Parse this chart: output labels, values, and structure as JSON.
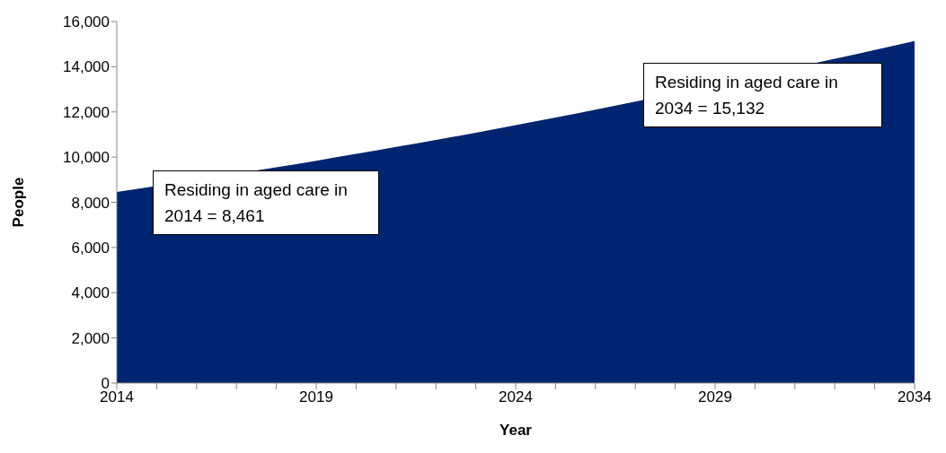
{
  "chart_data": {
    "type": "area",
    "xlabel": "Year",
    "ylabel": "People",
    "x": [
      2014,
      2018,
      2019,
      2020,
      2021,
      2022,
      2023,
      2024,
      2025,
      2026,
      2027,
      2032,
      2033,
      2034
    ],
    "series": [
      {
        "color": "#002570",
        "values": [
          8461,
          9550,
          9840,
          10140,
          10450,
          10760,
          11080,
          11410,
          11750,
          12100,
          12460,
          14350,
          14740,
          15132
        ]
      }
    ],
    "xlim": [
      2014,
      2034
    ],
    "xticks": [
      2014,
      {
        "value": 2015,
        "label": null
      },
      {
        "value": 2016,
        "label": null
      },
      {
        "value": 2017,
        "label": null
      },
      {
        "value": 2018,
        "label": null
      },
      2019,
      {
        "value": 2020,
        "label": null
      },
      {
        "value": 2021,
        "label": null
      },
      {
        "value": 2022,
        "label": null
      },
      {
        "value": 2023,
        "label": null
      },
      2024,
      {
        "value": 2025,
        "label": null
      },
      {
        "value": 2026,
        "label": null
      },
      {
        "value": 2027,
        "label": null
      },
      {
        "value": 2028,
        "label": null
      },
      2029,
      {
        "value": 2030,
        "label": null
      },
      {
        "value": 2031,
        "label": null
      },
      {
        "value": 2032,
        "label": null
      },
      {
        "value": 2033,
        "label": null
      },
      2034
    ],
    "ylim": [
      0,
      16000
    ],
    "yticks": [
      0,
      {
        "value": 2000,
        "label": "2,000"
      },
      {
        "value": 4000,
        "label": "4,000"
      },
      {
        "value": 6000,
        "label": "6,000"
      },
      {
        "value": 8000,
        "label": "8,000"
      },
      {
        "value": 10000,
        "label": "10,000"
      },
      {
        "value": 12000,
        "label": "12,000"
      },
      {
        "value": 14000,
        "label": "14,000"
      },
      {
        "value": 16000,
        "label": "16,000"
      }
    ],
    "grid": false,
    "legend": false,
    "annotations": [
      "Residing in aged care in 2014 = 8,461",
      "Residing in aged care in 2034 = 15,132"
    ]
  }
}
